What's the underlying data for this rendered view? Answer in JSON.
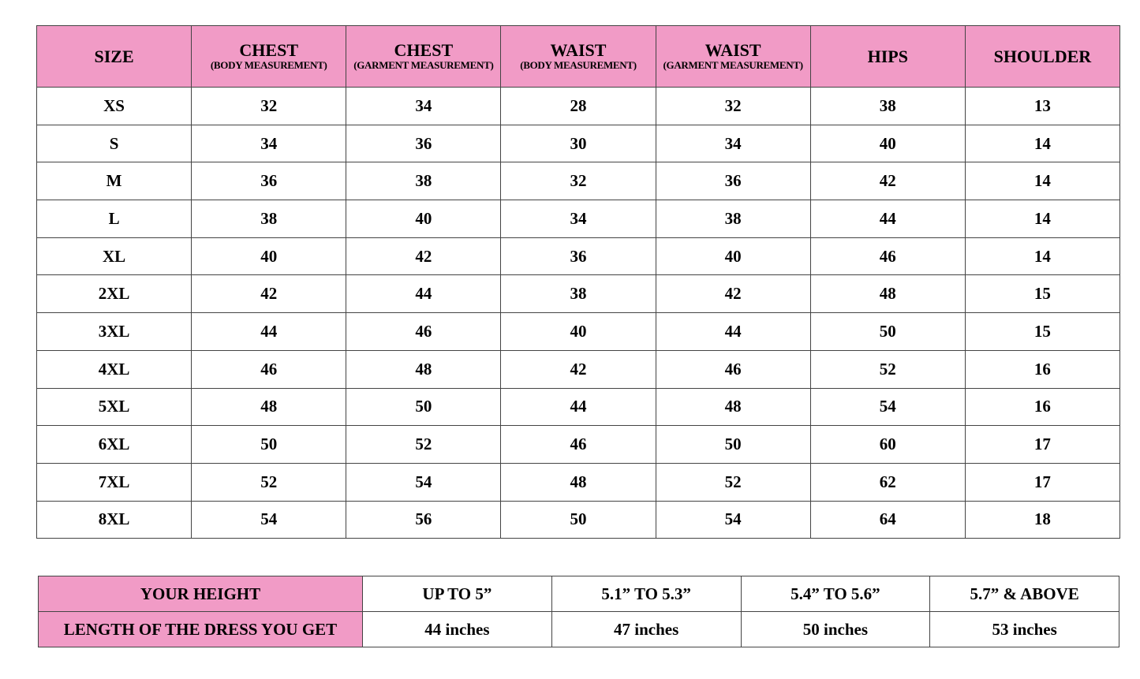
{
  "size_chart": {
    "headers": [
      {
        "title": "SIZE",
        "sub": ""
      },
      {
        "title": "CHEST",
        "sub": "(BODY MEASUREMENT)"
      },
      {
        "title": "CHEST",
        "sub": "(GARMENT MEASUREMENT)"
      },
      {
        "title": "WAIST",
        "sub": "(BODY MEASUREMENT)"
      },
      {
        "title": "WAIST",
        "sub": "(GARMENT MEASUREMENT)"
      },
      {
        "title": "HIPS",
        "sub": ""
      },
      {
        "title": "SHOULDER",
        "sub": ""
      }
    ],
    "rows": [
      [
        "XS",
        "32",
        "34",
        "28",
        "32",
        "38",
        "13"
      ],
      [
        "S",
        "34",
        "36",
        "30",
        "34",
        "40",
        "14"
      ],
      [
        "M",
        "36",
        "38",
        "32",
        "36",
        "42",
        "14"
      ],
      [
        "L",
        "38",
        "40",
        "34",
        "38",
        "44",
        "14"
      ],
      [
        "XL",
        "40",
        "42",
        "36",
        "40",
        "46",
        "14"
      ],
      [
        "2XL",
        "42",
        "44",
        "38",
        "42",
        "48",
        "15"
      ],
      [
        "3XL",
        "44",
        "46",
        "40",
        "44",
        "50",
        "15"
      ],
      [
        "4XL",
        "46",
        "48",
        "42",
        "46",
        "52",
        "16"
      ],
      [
        "5XL",
        "48",
        "50",
        "44",
        "48",
        "54",
        "16"
      ],
      [
        "6XL",
        "50",
        "52",
        "46",
        "50",
        "60",
        "17"
      ],
      [
        "7XL",
        "52",
        "54",
        "48",
        "52",
        "62",
        "17"
      ],
      [
        "8XL",
        "54",
        "56",
        "50",
        "54",
        "64",
        "18"
      ]
    ],
    "header_color": "#f19bc6"
  },
  "length_chart": {
    "height_label": "YOUR HEIGHT",
    "length_label": "LENGTH OF THE DRESS YOU GET",
    "heights": [
      "UP TO 5”",
      "5.1” TO 5.3”",
      "5.4” TO 5.6”",
      "5.7” & ABOVE"
    ],
    "lengths": [
      "44 inches",
      "47 inches",
      "50 inches",
      "53 inches"
    ]
  }
}
